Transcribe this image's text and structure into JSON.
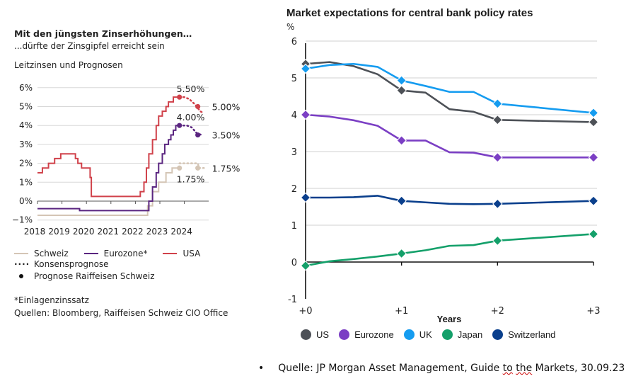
{
  "chart_data": [
    {
      "type": "line",
      "title": "Mit den jüngsten Zinserhöhungen…",
      "subtitle": "...dürfte der Zinsgipfel erreicht sein",
      "ylabel": "Leitzinsen und Prognosen",
      "xlabel": "",
      "ylim": [
        -1,
        6
      ],
      "xlim": [
        2018,
        2024.9
      ],
      "y_ticks": [
        "6%",
        "5%",
        "4%",
        "3%",
        "2%",
        "1%",
        "0%",
        "−1%"
      ],
      "y_tick_values": [
        6,
        5,
        4,
        3,
        2,
        1,
        0,
        -1
      ],
      "x_ticks": [
        "2018",
        "2019",
        "2020",
        "2021",
        "2022",
        "2023",
        "2024"
      ],
      "x_tick_values": [
        2018,
        2019,
        2020,
        2021,
        2022,
        2023,
        2024
      ],
      "grid": true,
      "series": [
        {
          "name": "USA",
          "color": "#d0414a",
          "style": "step",
          "points": [
            [
              2018.0,
              1.5
            ],
            [
              2018.2,
              1.75
            ],
            [
              2018.45,
              2.0
            ],
            [
              2018.7,
              2.25
            ],
            [
              2018.95,
              2.5
            ],
            [
              2019.55,
              2.25
            ],
            [
              2019.65,
              2.0
            ],
            [
              2019.8,
              1.75
            ],
            [
              2020.15,
              1.25
            ],
            [
              2020.2,
              0.25
            ],
            [
              2021.95,
              0.25
            ],
            [
              2022.2,
              0.5
            ],
            [
              2022.35,
              1.0
            ],
            [
              2022.45,
              1.75
            ],
            [
              2022.55,
              2.5
            ],
            [
              2022.7,
              3.25
            ],
            [
              2022.85,
              4.0
            ],
            [
              2022.95,
              4.5
            ],
            [
              2023.1,
              4.75
            ],
            [
              2023.25,
              5.0
            ],
            [
              2023.35,
              5.25
            ],
            [
              2023.55,
              5.5
            ],
            [
              2023.8,
              5.5
            ]
          ],
          "forecast_consensus": [
            [
              2023.8,
              5.5
            ],
            [
              2024.0,
              5.5
            ],
            [
              2024.2,
              5.4
            ],
            [
              2024.45,
              5.1
            ],
            [
              2024.65,
              4.75
            ],
            [
              2024.8,
              4.65
            ]
          ],
          "forecast_raiffeisen": [
            [
              2023.8,
              5.5
            ],
            [
              2024.55,
              5.0
            ]
          ],
          "labels": [
            {
              "text": "5.50%",
              "x": 2023.8,
              "y": 5.5
            },
            {
              "text": "5.00%",
              "x": 2024.55,
              "y": 5.0
            }
          ]
        },
        {
          "name": "Eurozone*",
          "color": "#5a2580",
          "style": "step",
          "points": [
            [
              2018.0,
              -0.4
            ],
            [
              2019.7,
              -0.4
            ],
            [
              2019.72,
              -0.5
            ],
            [
              2022.5,
              -0.5
            ],
            [
              2022.55,
              0.0
            ],
            [
              2022.7,
              0.75
            ],
            [
              2022.85,
              1.5
            ],
            [
              2022.95,
              2.0
            ],
            [
              2023.1,
              2.5
            ],
            [
              2023.2,
              3.0
            ],
            [
              2023.35,
              3.25
            ],
            [
              2023.45,
              3.5
            ],
            [
              2023.55,
              3.75
            ],
            [
              2023.65,
              4.0
            ],
            [
              2023.8,
              4.0
            ]
          ],
          "forecast_consensus": [
            [
              2023.8,
              4.0
            ],
            [
              2024.1,
              4.0
            ],
            [
              2024.3,
              3.9
            ],
            [
              2024.5,
              3.6
            ],
            [
              2024.7,
              3.5
            ]
          ],
          "forecast_raiffeisen": [
            [
              2023.8,
              4.0
            ],
            [
              2024.55,
              3.5
            ]
          ],
          "labels": [
            {
              "text": "4.00%",
              "x": 2023.8,
              "y": 4.0
            },
            {
              "text": "3.50%",
              "x": 2024.55,
              "y": 3.5
            }
          ]
        },
        {
          "name": "Schweiz",
          "color": "#d4c5b5",
          "style": "step",
          "points": [
            [
              2018.0,
              -0.75
            ],
            [
              2022.45,
              -0.75
            ],
            [
              2022.5,
              -0.25
            ],
            [
              2022.7,
              0.5
            ],
            [
              2022.95,
              1.0
            ],
            [
              2023.25,
              1.5
            ],
            [
              2023.5,
              1.75
            ],
            [
              2023.8,
              1.75
            ]
          ],
          "forecast_consensus": [
            [
              2023.8,
              2.0
            ],
            [
              2024.55,
              2.0
            ],
            [
              2024.6,
              1.75
            ],
            [
              2024.8,
              1.75
            ]
          ],
          "forecast_raiffeisen": [
            [
              2023.8,
              1.75
            ],
            [
              2024.55,
              1.75
            ]
          ],
          "labels": [
            {
              "text": "1.75%",
              "x": 2023.8,
              "y": 1.4
            },
            {
              "text": "1.75%",
              "x": 2024.55,
              "y": 1.75
            }
          ]
        }
      ],
      "legend": {
        "placement": "bottom",
        "items": [
          {
            "label": "Schweiz",
            "color": "#d4c5b5",
            "kind": "line"
          },
          {
            "label": "Eurozone*",
            "color": "#5a2580",
            "kind": "line"
          },
          {
            "label": "USA",
            "color": "#d0414a",
            "kind": "line"
          },
          {
            "label": "Konsensprognose",
            "color": "#222222",
            "kind": "dotted"
          },
          {
            "label": "Prognose Raiffeisen Schweiz",
            "color": "#222222",
            "kind": "dot"
          }
        ]
      },
      "notes": [
        "*Einlagenzinssatz",
        "Quellen: Bloomberg, Raiffeisen Schweiz CIO Office"
      ]
    },
    {
      "type": "line",
      "title": "Market expectations for central bank policy rates",
      "ylabel": "%",
      "xlabel": "Years",
      "ylim": [
        -1,
        6
      ],
      "xlim": [
        0,
        3
      ],
      "y_ticks": [
        "6",
        "5",
        "4",
        "3",
        "2",
        "1",
        "0",
        "-1"
      ],
      "y_tick_values": [
        6,
        5,
        4,
        3,
        2,
        1,
        0,
        -1
      ],
      "x_ticks": [
        "+0",
        "+1",
        "+2",
        "+3"
      ],
      "x_tick_values": [
        0,
        1,
        2,
        3
      ],
      "grid": true,
      "marker_x": [
        0,
        1,
        2,
        3
      ],
      "series": [
        {
          "name": "US",
          "color": "#4d5157",
          "x": [
            0,
            0.25,
            0.5,
            0.75,
            1,
            1.25,
            1.5,
            1.75,
            2,
            3
          ],
          "values": [
            5.38,
            5.43,
            5.32,
            5.1,
            4.66,
            4.6,
            4.15,
            4.08,
            3.86,
            3.8
          ]
        },
        {
          "name": "Eurozone",
          "color": "#7b3fc4",
          "x": [
            0,
            0.25,
            0.5,
            0.75,
            1,
            1.25,
            1.5,
            1.75,
            2,
            3
          ],
          "values": [
            4.0,
            3.95,
            3.85,
            3.7,
            3.3,
            3.3,
            2.98,
            2.97,
            2.84,
            2.84
          ]
        },
        {
          "name": "UK",
          "color": "#159cf0",
          "x": [
            0,
            0.25,
            0.5,
            0.75,
            1,
            1.25,
            1.5,
            1.75,
            2,
            3
          ],
          "values": [
            5.25,
            5.35,
            5.38,
            5.3,
            4.93,
            4.78,
            4.62,
            4.62,
            4.3,
            4.05
          ]
        },
        {
          "name": "Japan",
          "color": "#14a06a",
          "x": [
            0,
            0.25,
            0.5,
            0.75,
            1,
            1.25,
            1.5,
            1.75,
            2,
            3
          ],
          "values": [
            -0.1,
            0.02,
            0.08,
            0.15,
            0.23,
            0.32,
            0.44,
            0.46,
            0.58,
            0.76
          ]
        },
        {
          "name": "Switzerland",
          "color": "#0a3f8c",
          "x": [
            0,
            0.25,
            0.5,
            0.75,
            1,
            1.25,
            1.5,
            1.75,
            2,
            3
          ],
          "values": [
            1.75,
            1.75,
            1.76,
            1.8,
            1.66,
            1.62,
            1.58,
            1.57,
            1.58,
            1.66
          ]
        }
      ],
      "legend": {
        "placement": "bottom",
        "items": [
          "US",
          "Eurozone",
          "UK",
          "Japan",
          "Switzerland"
        ]
      }
    }
  ],
  "left": {
    "title": "Mit den jüngsten Zinserhöhungen…",
    "subtitle": "...dürfte der Zinsgipfel erreicht sein",
    "axis_caption": "Leitzinsen und Prognosen",
    "legend": {
      "schweiz": "Schweiz",
      "eurozone": "Eurozone*",
      "usa": "USA",
      "konsens": "Konsensprognose",
      "raiffeisen": "Prognose Raiffeisen Schweiz"
    },
    "note1": "*Einlagenzinssatz",
    "note2": "Quellen: Bloomberg, Raiffeisen Schweiz CIO Office"
  },
  "right": {
    "title": "Market expectations for central bank policy rates",
    "unit": "%",
    "xlabel": "Years",
    "legend": [
      {
        "label": "US",
        "color": "#4d5157"
      },
      {
        "label": "Eurozone",
        "color": "#7b3fc4"
      },
      {
        "label": "UK",
        "color": "#159cf0"
      },
      {
        "label": "Japan",
        "color": "#14a06a"
      },
      {
        "label": "Switzerland",
        "color": "#0a3f8c"
      }
    ]
  },
  "footnote": {
    "bullet": "•",
    "prefix": "Quelle: JP Morgan Asset Management, Guide ",
    "squiggle1": "to",
    "space": " ",
    "squiggle2": "the",
    "suffix": " Markets, 30.09.23"
  }
}
